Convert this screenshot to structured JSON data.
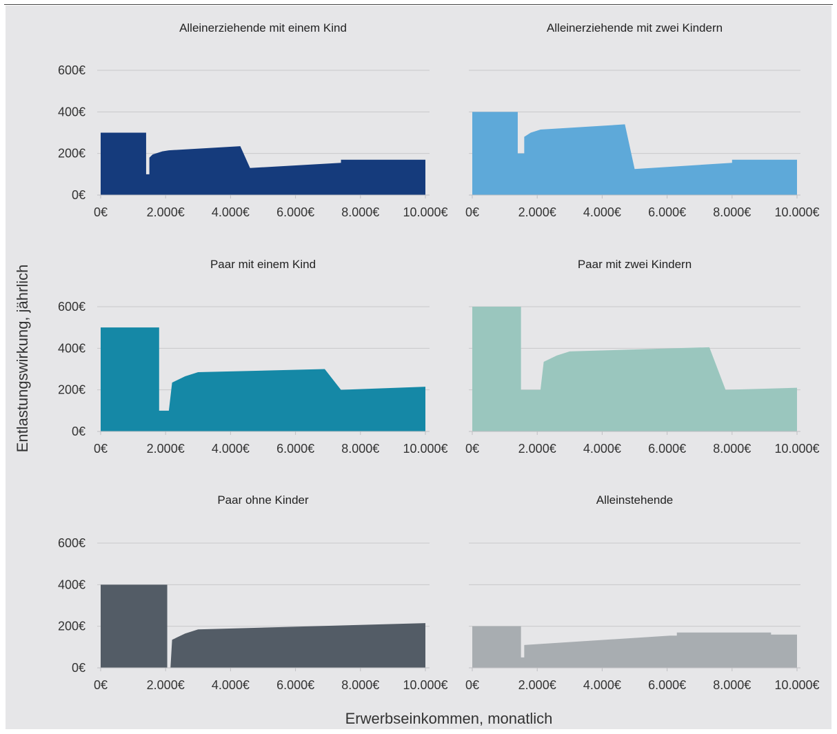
{
  "chart_data": {
    "type": "area",
    "ylabel": "Entlastungswirkung, jährlich",
    "xlabel": "Erwerbseinkommen, monatlich",
    "x_ticks": [
      "0€",
      "2.000€",
      "4.000€",
      "6.000€",
      "8.000€",
      "10.000€"
    ],
    "y_ticks": [
      "0€",
      "200€",
      "400€",
      "600€"
    ],
    "xlim": [
      0,
      10000
    ],
    "ylim": [
      0,
      600
    ],
    "grid": true,
    "panels": [
      {
        "title": "Alleinerziehende mit einem Kind",
        "color": "#153b7c",
        "x": [
          0,
          1400,
          1400,
          1500,
          1500,
          1600,
          1900,
          2100,
          4300,
          4600,
          7400,
          7400,
          10000
        ],
        "y": [
          300,
          300,
          100,
          100,
          180,
          195,
          210,
          215,
          235,
          130,
          155,
          170,
          170
        ]
      },
      {
        "title": "Alleinerziehende mit zwei Kindern",
        "color": "#5ea9d9",
        "x": [
          0,
          1400,
          1400,
          1600,
          1600,
          1800,
          2100,
          4700,
          5000,
          8000,
          8000,
          10000
        ],
        "y": [
          400,
          400,
          200,
          200,
          280,
          300,
          315,
          340,
          125,
          155,
          170,
          170
        ]
      },
      {
        "title": "Paar mit einem Kind",
        "color": "#1588a6",
        "x": [
          0,
          1800,
          1800,
          2100,
          2200,
          2600,
          3000,
          6900,
          7400,
          10000
        ],
        "y": [
          500,
          500,
          100,
          100,
          235,
          265,
          285,
          300,
          200,
          215
        ]
      },
      {
        "title": "Paar mit zwei Kindern",
        "color": "#9ac6be",
        "x": [
          0,
          1500,
          1500,
          2100,
          2200,
          2600,
          3000,
          7300,
          7800,
          10000
        ],
        "y": [
          600,
          600,
          200,
          200,
          335,
          365,
          385,
          405,
          200,
          210
        ]
      },
      {
        "title": "Paar ohne Kinder",
        "color": "#535c66",
        "x": [
          0,
          2050,
          2050,
          2150,
          2200,
          2600,
          3000,
          10000
        ],
        "y": [
          400,
          400,
          0,
          0,
          135,
          165,
          185,
          215
        ]
      },
      {
        "title": "Alleinstehende",
        "color": "#a8adb1",
        "x": [
          0,
          1500,
          1500,
          1600,
          1600,
          6100,
          6300,
          6300,
          9200,
          9200,
          10000
        ],
        "y": [
          200,
          200,
          50,
          50,
          110,
          155,
          155,
          170,
          170,
          160,
          160
        ]
      }
    ]
  }
}
